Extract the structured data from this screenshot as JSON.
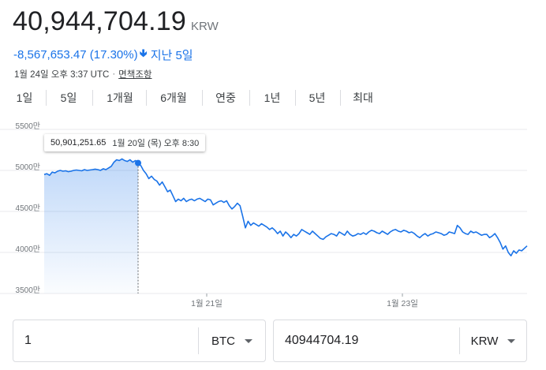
{
  "quote": {
    "price": "40,944,704.19",
    "currency": "KRW",
    "change": "-8,567,653.47 (17.30%)",
    "arrow_icon": "arrow-down-icon",
    "period": "지난 5일",
    "timestamp": "1월 24일 오후 3:37 UTC",
    "separator": "·",
    "disclaimer": "면책조항"
  },
  "tabs": [
    {
      "label": "1일",
      "active": false
    },
    {
      "label": "5일",
      "active": true
    },
    {
      "label": "1개월",
      "active": false
    },
    {
      "label": "6개월",
      "active": false
    },
    {
      "label": "연중",
      "active": false
    },
    {
      "label": "1년",
      "active": false
    },
    {
      "label": "5년",
      "active": false
    },
    {
      "label": "최대",
      "active": false
    }
  ],
  "tooltip": {
    "value": "50,901,251.65",
    "date": "1월 20일 (목) 오후 8:30"
  },
  "colors": {
    "accent": "#1a73e8",
    "line": "#1a73e8",
    "grid": "#e8eaed",
    "axis_text": "#70757a"
  },
  "chart_data": {
    "type": "area",
    "title": "",
    "ylim": [
      3500,
      5500
    ],
    "y_unit": "만",
    "y_ticks": [
      "3500만",
      "4000만",
      "4500만",
      "5000만",
      "5500만"
    ],
    "x_ticks": [
      "1월 21일",
      "1월 23일"
    ],
    "grid": true,
    "highlight_point": {
      "date": "1월 20일 (목) 오후 8:30",
      "value": 5090
    },
    "series": [
      {
        "values": [
          4950,
          4960,
          4940,
          4980,
          4970,
          4990,
          5000,
          4990,
          4995,
          4985,
          4990,
          5000,
          5005,
          5000,
          4995,
          5010,
          5000,
          5005,
          5010,
          5015,
          5010,
          5000,
          5020,
          5010,
          5030,
          5050,
          5100,
          5130,
          5120,
          5140,
          5120,
          5110,
          5130,
          5100,
          5120,
          5090,
          5060,
          5000,
          4960,
          4900,
          4930,
          4890,
          4870,
          4820,
          4860,
          4800,
          4740,
          4760,
          4690,
          4620,
          4650,
          4630,
          4660,
          4620,
          4640,
          4650,
          4630,
          4650,
          4660,
          4640,
          4620,
          4650,
          4640,
          4580,
          4600,
          4620,
          4630,
          4610,
          4630,
          4570,
          4530,
          4560,
          4600,
          4570,
          4440,
          4300,
          4380,
          4330,
          4360,
          4340,
          4320,
          4350,
          4330,
          4310,
          4280,
          4300,
          4270,
          4230,
          4260,
          4200,
          4250,
          4220,
          4180,
          4220,
          4200,
          4230,
          4280,
          4260,
          4240,
          4220,
          4260,
          4230,
          4200,
          4170,
          4160,
          4190,
          4210,
          4230,
          4220,
          4200,
          4250,
          4230,
          4210,
          4260,
          4220,
          4200,
          4210,
          4230,
          4220,
          4240,
          4220,
          4250,
          4270,
          4260,
          4240,
          4230,
          4260,
          4240,
          4220,
          4250,
          4270,
          4280,
          4260,
          4250,
          4270,
          4260,
          4240,
          4250,
          4230,
          4200,
          4180,
          4210,
          4230,
          4200,
          4220,
          4230,
          4250,
          4240,
          4230,
          4210,
          4220,
          4250,
          4240,
          4230,
          4330,
          4300,
          4250,
          4230,
          4220,
          4260,
          4240,
          4250,
          4230,
          4210,
          4220,
          4220,
          4180,
          4200,
          4230,
          4180,
          4120,
          4040,
          4080,
          4000,
          3960,
          4020,
          3990,
          4030,
          4020,
          4050,
          4080
        ]
      }
    ]
  },
  "converter": {
    "left_value": "1",
    "left_currency": "BTC",
    "right_value": "40944704.19",
    "right_currency": "KRW"
  }
}
